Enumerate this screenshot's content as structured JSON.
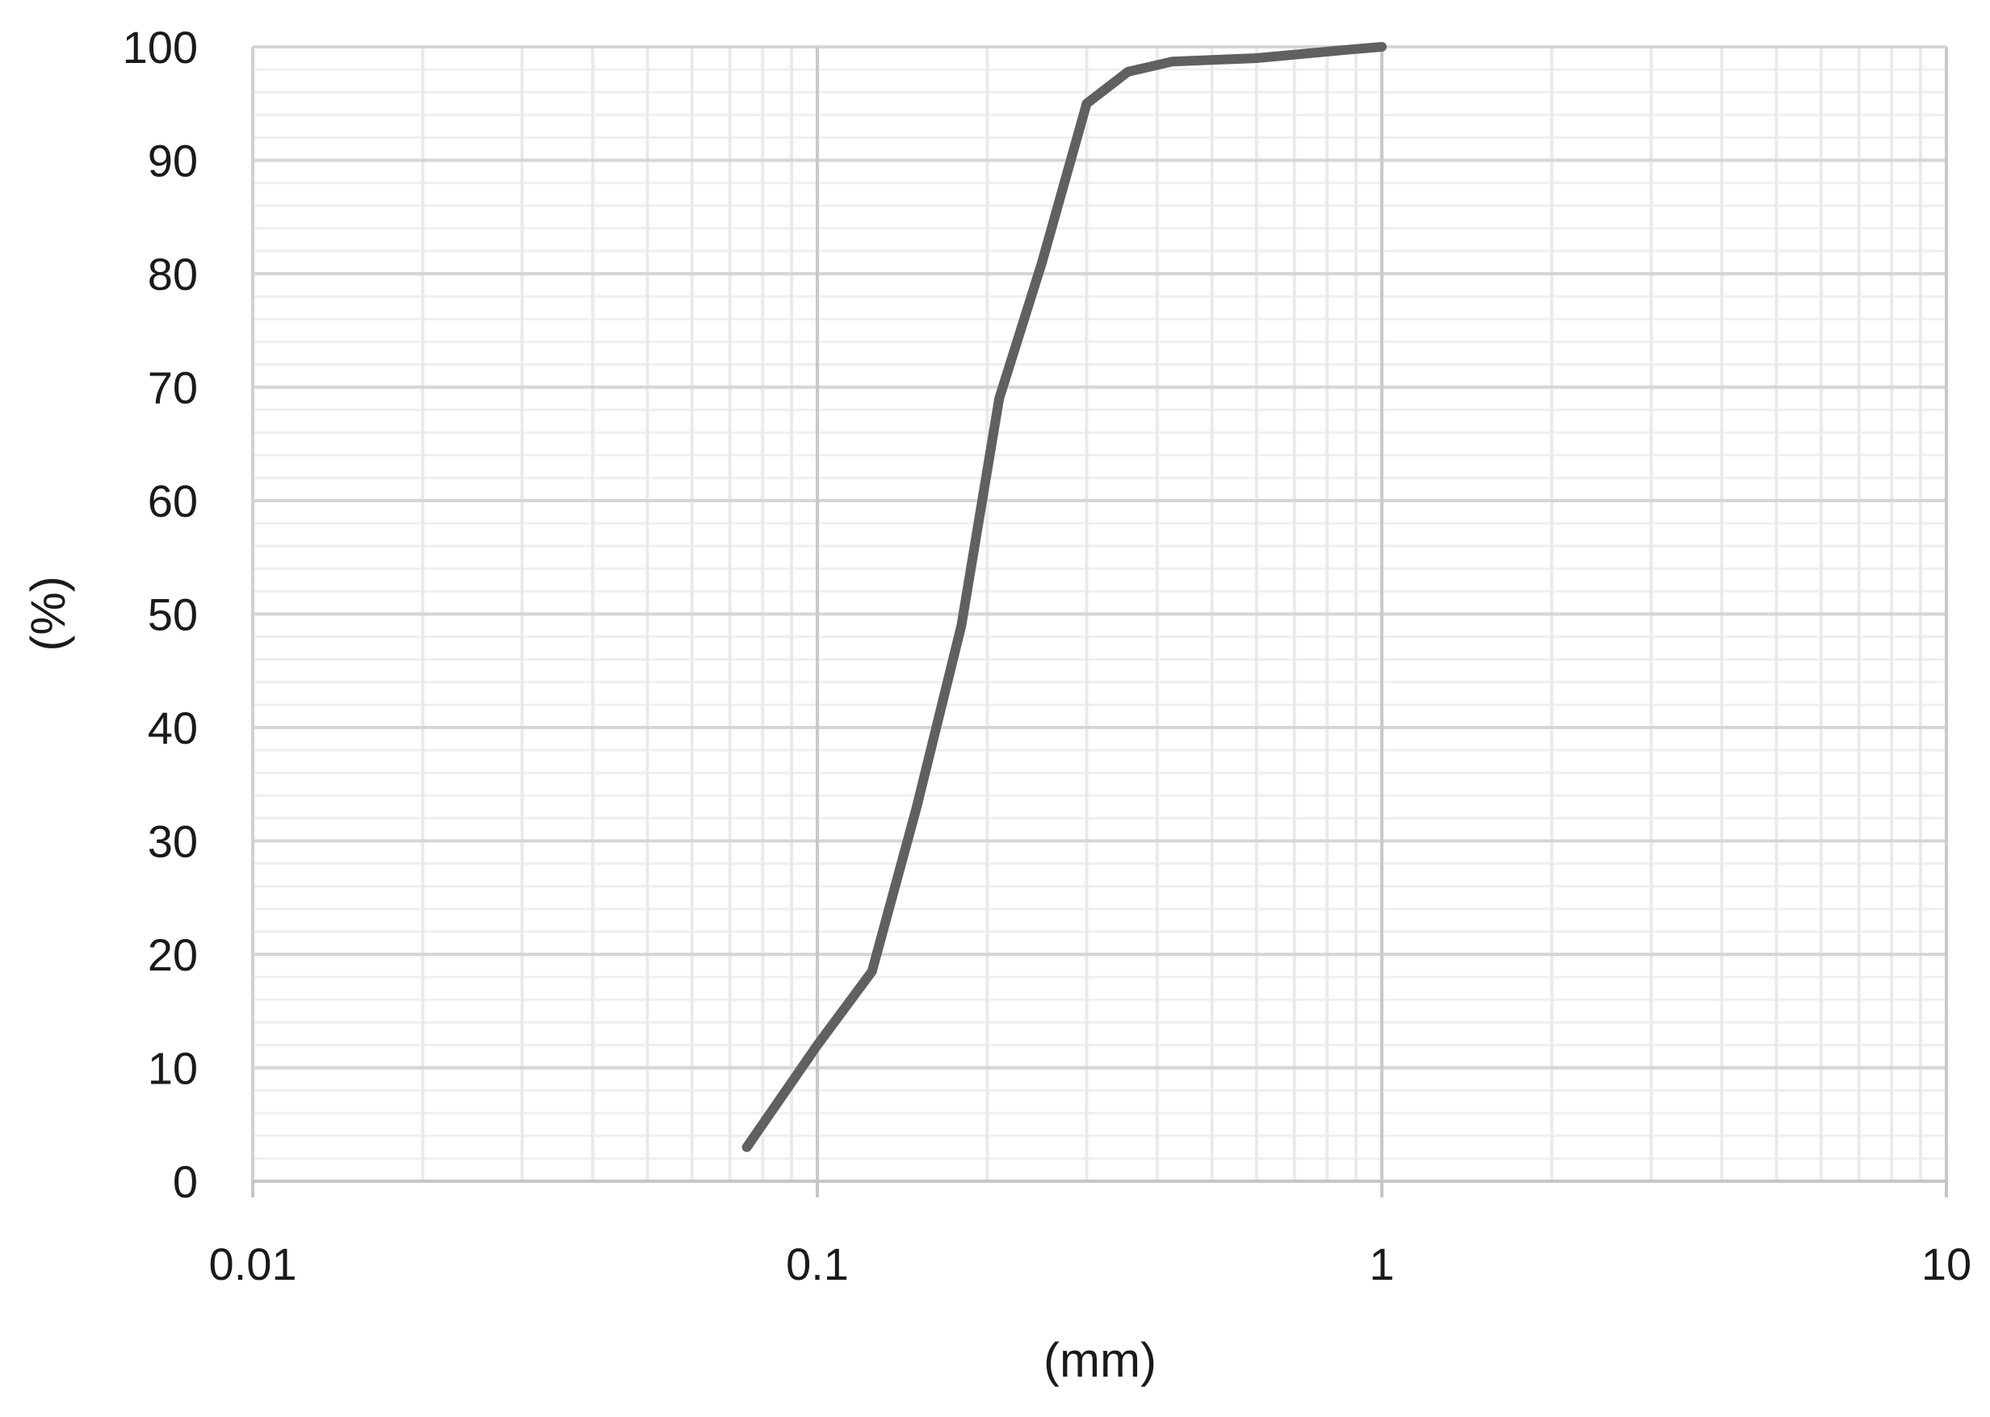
{
  "chart_data": {
    "type": "line",
    "title": "",
    "xlabel": "(mm)",
    "ylabel": "(%)",
    "xscale": "log",
    "xlim": [
      0.01,
      10
    ],
    "ylim": [
      0,
      100
    ],
    "xticks": [
      0.01,
      0.1,
      1,
      10
    ],
    "xtick_labels": [
      "0.01",
      "0.1",
      "1",
      "10"
    ],
    "yticks": [
      0,
      10,
      20,
      30,
      40,
      50,
      60,
      70,
      80,
      90,
      100
    ],
    "ytick_labels": [
      "0",
      "10",
      "20",
      "30",
      "40",
      "50",
      "60",
      "70",
      "80",
      "90",
      "100"
    ],
    "grid": true,
    "minor_grid": true,
    "legend": "none",
    "series": [
      {
        "color": "#606060",
        "points": [
          {
            "x": 0.075,
            "y": 3
          },
          {
            "x": 0.1,
            "y": 12
          },
          {
            "x": 0.125,
            "y": 18.5
          },
          {
            "x": 0.15,
            "y": 33
          },
          {
            "x": 0.18,
            "y": 49
          },
          {
            "x": 0.21,
            "y": 69
          },
          {
            "x": 0.25,
            "y": 81
          },
          {
            "x": 0.3,
            "y": 95
          },
          {
            "x": 0.355,
            "y": 97.8
          },
          {
            "x": 0.425,
            "y": 98.7
          },
          {
            "x": 0.6,
            "y": 99
          },
          {
            "x": 0.85,
            "y": 99.7
          },
          {
            "x": 1,
            "y": 100
          }
        ]
      }
    ]
  }
}
